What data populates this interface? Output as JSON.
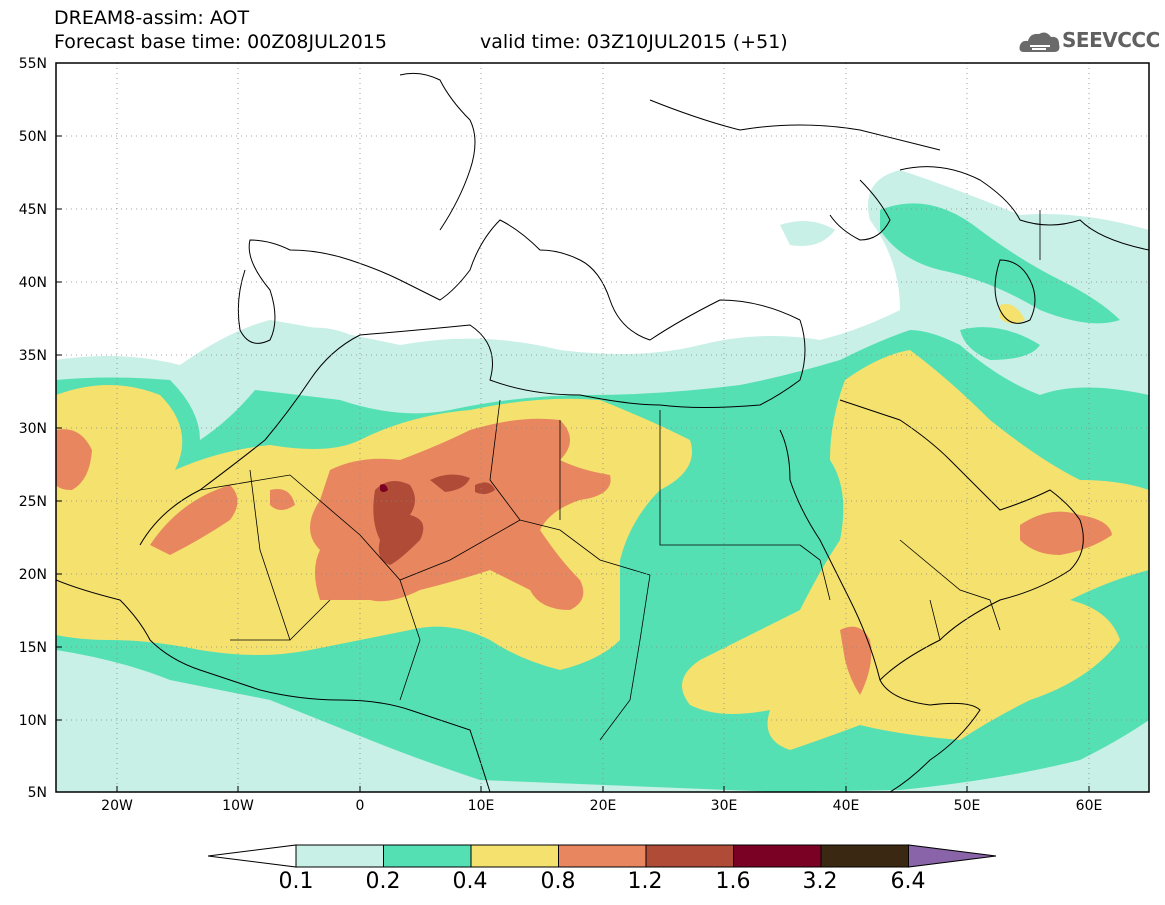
{
  "header": {
    "line1": "DREAM8-assim: AOT",
    "line2": "Forecast base time: 00Z08JUL2015",
    "valid": "valid time: 03Z10JUL2015 (+51)",
    "logo_text": "SEEVCCC",
    "logo_icon": "cloud-logo-icon"
  },
  "map": {
    "lat_labels": [
      "55N",
      "50N",
      "45N",
      "40N",
      "35N",
      "30N",
      "25N",
      "20N",
      "15N",
      "10N",
      "5N"
    ],
    "lon_labels": [
      "20W",
      "10W",
      "0",
      "10E",
      "20E",
      "30E",
      "40E",
      "50E",
      "60E"
    ],
    "extent": {
      "lon_min": -25,
      "lon_max": 65,
      "lat_min": 5,
      "lat_max": 55
    },
    "grid": "dotted"
  },
  "colorbar": {
    "labels": [
      "0.1",
      "0.2",
      "0.4",
      "0.8",
      "1.2",
      "1.6",
      "3.2",
      "6.4"
    ],
    "colors": [
      "#ffffff",
      "#c8f0e6",
      "#55e0b4",
      "#f5e16e",
      "#e8875f",
      "#b04b38",
      "#7a0024",
      "#3a2813",
      "#8a64a8"
    ]
  }
}
